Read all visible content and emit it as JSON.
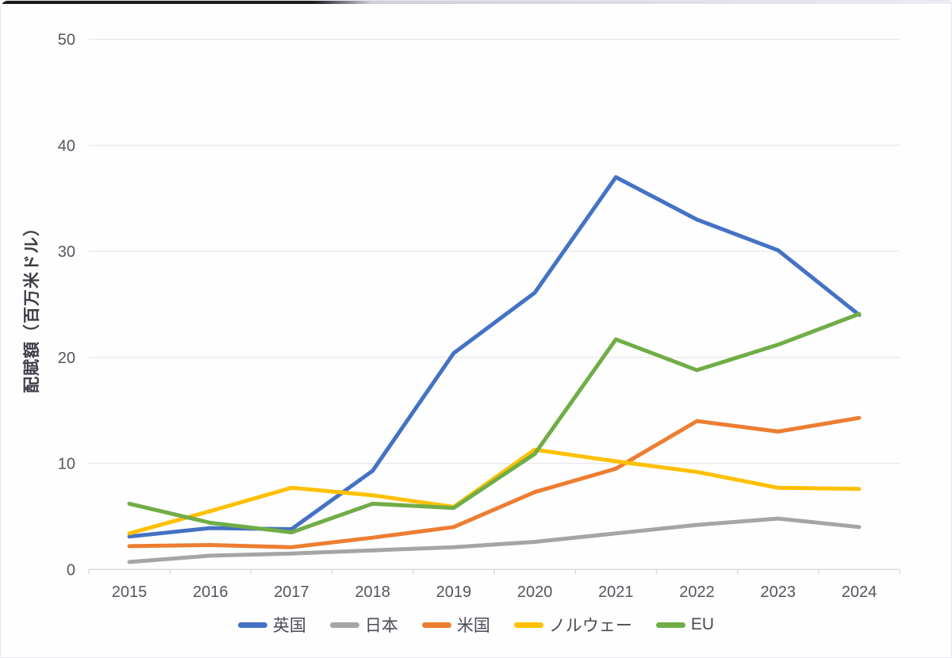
{
  "chart_data": {
    "type": "line",
    "title": "",
    "xlabel": "",
    "ylabel": "配賦額（百万米ドル）",
    "categories": [
      "2015",
      "2016",
      "2017",
      "2018",
      "2019",
      "2020",
      "2021",
      "2022",
      "2023",
      "2024"
    ],
    "y_ticks": [
      0,
      10,
      20,
      30,
      40,
      50
    ],
    "ylim": [
      0,
      50
    ],
    "grid": "horizontal",
    "legend_position": "bottom",
    "series": [
      {
        "name": "英国",
        "color": "#4472C4",
        "values": [
          3.1,
          3.9,
          3.8,
          9.3,
          20.4,
          26.1,
          37.0,
          33.0,
          30.1,
          24.0
        ]
      },
      {
        "name": "日本",
        "color": "#A5A5A5",
        "values": [
          0.7,
          1.3,
          1.5,
          1.8,
          2.1,
          2.6,
          3.4,
          4.2,
          4.8,
          4.0
        ]
      },
      {
        "name": "米国",
        "color": "#ED7D31",
        "values": [
          2.2,
          2.3,
          2.1,
          3.0,
          4.0,
          7.3,
          9.5,
          14.0,
          13.0,
          14.3
        ]
      },
      {
        "name": "ノルウェー",
        "color": "#FFC000",
        "values": [
          3.4,
          5.5,
          7.7,
          7.0,
          5.9,
          11.3,
          10.2,
          9.2,
          7.7,
          7.6
        ]
      },
      {
        "name": "EU",
        "color": "#70AD47",
        "values": [
          6.2,
          4.4,
          3.5,
          6.2,
          5.8,
          10.9,
          21.7,
          18.8,
          21.2,
          24.1
        ]
      }
    ],
    "colors": {
      "gridline": "#e8e8ed",
      "axis_line": "#d8d8de",
      "tick_mark": "#d8d8de",
      "tick_label": "#55555e",
      "axis_title": "#3d3d46"
    }
  }
}
